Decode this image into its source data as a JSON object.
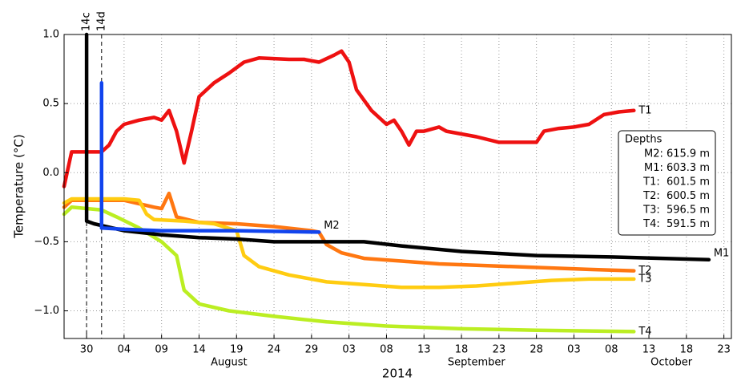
{
  "chart_data": {
    "type": "line",
    "xlabel": "2014",
    "ylabel": "Temperature (°C)",
    "xlim": [
      "2014-07-27",
      "2014-10-24"
    ],
    "ylim": [
      -1.2,
      1.0
    ],
    "grid": true,
    "xticks": [
      {
        "value": "2014-07-30",
        "label": "30"
      },
      {
        "value": "2014-08-04",
        "label": "04"
      },
      {
        "value": "2014-08-09",
        "label": "09"
      },
      {
        "value": "2014-08-14",
        "label": "14"
      },
      {
        "value": "2014-08-19",
        "label": "19"
      },
      {
        "value": "2014-08-24",
        "label": "24"
      },
      {
        "value": "2014-08-29",
        "label": "29"
      },
      {
        "value": "2014-09-03",
        "label": "03"
      },
      {
        "value": "2014-09-08",
        "label": "08"
      },
      {
        "value": "2014-09-13",
        "label": "13"
      },
      {
        "value": "2014-09-18",
        "label": "18"
      },
      {
        "value": "2014-09-23",
        "label": "23"
      },
      {
        "value": "2014-09-28",
        "label": "28"
      },
      {
        "value": "2014-10-03",
        "label": "03"
      },
      {
        "value": "2014-10-08",
        "label": "08"
      },
      {
        "value": "2014-10-13",
        "label": "13"
      },
      {
        "value": "2014-10-18",
        "label": "18"
      },
      {
        "value": "2014-10-23",
        "label": "23"
      }
    ],
    "month_labels": [
      {
        "value": "2014-08-18",
        "label": "August"
      },
      {
        "value": "2014-09-20",
        "label": "September"
      },
      {
        "value": "2014-10-16",
        "label": "October"
      }
    ],
    "yticks": [
      {
        "value": 1.0,
        "label": "1.0"
      },
      {
        "value": 0.5,
        "label": "0.5"
      },
      {
        "value": 0.0,
        "label": "0.0"
      },
      {
        "value": -0.5,
        "label": "−0.5"
      },
      {
        "value": -1.0,
        "label": "−1.0"
      }
    ],
    "vlines": [
      {
        "x": "2014-07-30",
        "label": "14c"
      },
      {
        "x": "2014-08-01",
        "label": "14d"
      }
    ],
    "series": [
      {
        "name": "T1",
        "color": "#ee1111",
        "x": [
          "2014-07-27",
          "2014-07-28",
          "2014-07-30",
          "2014-08-01",
          "2014-08-02",
          "2014-08-03",
          "2014-08-04",
          "2014-08-06",
          "2014-08-08",
          "2014-08-09",
          "2014-08-10",
          "2014-08-11",
          "2014-08-12",
          "2014-08-13",
          "2014-08-14",
          "2014-08-16",
          "2014-08-18",
          "2014-08-20",
          "2014-08-22",
          "2014-08-26",
          "2014-08-28",
          "2014-08-30",
          "2014-09-01",
          "2014-09-02",
          "2014-09-03",
          "2014-09-04",
          "2014-09-06",
          "2014-09-08",
          "2014-09-09",
          "2014-09-10",
          "2014-09-11",
          "2014-09-12",
          "2014-09-13",
          "2014-09-15",
          "2014-09-16",
          "2014-09-20",
          "2014-09-23",
          "2014-09-27",
          "2014-09-28",
          "2014-09-29",
          "2014-10-01",
          "2014-10-03",
          "2014-10-05",
          "2014-10-07",
          "2014-10-09",
          "2014-10-11"
        ],
        "values": [
          -0.1,
          0.15,
          0.15,
          0.15,
          0.2,
          0.3,
          0.35,
          0.38,
          0.4,
          0.38,
          0.45,
          0.3,
          0.07,
          0.3,
          0.55,
          0.65,
          0.72,
          0.8,
          0.83,
          0.82,
          0.82,
          0.8,
          0.85,
          0.88,
          0.8,
          0.6,
          0.45,
          0.35,
          0.38,
          0.3,
          0.2,
          0.3,
          0.3,
          0.33,
          0.3,
          0.26,
          0.22,
          0.22,
          0.22,
          0.3,
          0.32,
          0.33,
          0.35,
          0.42,
          0.44,
          0.45
        ]
      },
      {
        "name": "T2",
        "color": "#ff7711",
        "x": [
          "2014-07-27",
          "2014-07-28",
          "2014-08-01",
          "2014-08-04",
          "2014-08-08",
          "2014-08-09",
          "2014-08-10",
          "2014-08-11",
          "2014-08-14",
          "2014-08-19",
          "2014-08-24",
          "2014-08-29",
          "2014-08-30",
          "2014-08-31",
          "2014-09-02",
          "2014-09-05",
          "2014-09-10",
          "2014-09-15",
          "2014-09-20",
          "2014-09-25",
          "2014-09-30",
          "2014-10-05",
          "2014-10-11"
        ],
        "values": [
          -0.25,
          -0.2,
          -0.2,
          -0.2,
          -0.25,
          -0.26,
          -0.15,
          -0.32,
          -0.36,
          -0.37,
          -0.39,
          -0.42,
          -0.43,
          -0.52,
          -0.58,
          -0.62,
          -0.64,
          -0.66,
          -0.67,
          -0.68,
          -0.69,
          -0.7,
          -0.71
        ]
      },
      {
        "name": "T3",
        "color": "#ffcc11",
        "x": [
          "2014-07-27",
          "2014-07-28",
          "2014-08-04",
          "2014-08-06",
          "2014-08-07",
          "2014-08-08",
          "2014-08-12",
          "2014-08-16",
          "2014-08-19",
          "2014-08-20",
          "2014-08-22",
          "2014-08-26",
          "2014-08-31",
          "2014-09-05",
          "2014-09-10",
          "2014-09-15",
          "2014-09-20",
          "2014-09-25",
          "2014-09-30",
          "2014-10-05",
          "2014-10-11"
        ],
        "values": [
          -0.22,
          -0.19,
          -0.19,
          -0.2,
          -0.3,
          -0.34,
          -0.35,
          -0.37,
          -0.42,
          -0.6,
          -0.68,
          -0.74,
          -0.79,
          -0.81,
          -0.83,
          -0.83,
          -0.82,
          -0.8,
          -0.78,
          -0.77,
          -0.77
        ]
      },
      {
        "name": "T4",
        "color": "#bbee22",
        "x": [
          "2014-07-27",
          "2014-07-28",
          "2014-08-01",
          "2014-08-03",
          "2014-08-06",
          "2014-08-09",
          "2014-08-11",
          "2014-08-12",
          "2014-08-14",
          "2014-08-18",
          "2014-08-24",
          "2014-08-31",
          "2014-09-08",
          "2014-09-18",
          "2014-09-28",
          "2014-10-11"
        ],
        "values": [
          -0.3,
          -0.25,
          -0.27,
          -0.32,
          -0.4,
          -0.5,
          -0.6,
          -0.85,
          -0.95,
          -1.0,
          -1.04,
          -1.08,
          -1.11,
          -1.13,
          -1.14,
          -1.15
        ]
      },
      {
        "name": "M1",
        "color": "#000000",
        "x": [
          "2014-07-30",
          "2014-07-30",
          "2014-07-31",
          "2014-08-04",
          "2014-08-09",
          "2014-08-14",
          "2014-08-19",
          "2014-08-24",
          "2014-08-31",
          "2014-09-05",
          "2014-09-10",
          "2014-09-18",
          "2014-09-28",
          "2014-10-08",
          "2014-10-21"
        ],
        "values": [
          1.0,
          -0.35,
          -0.37,
          -0.42,
          -0.45,
          -0.47,
          -0.48,
          -0.5,
          -0.5,
          -0.5,
          -0.53,
          -0.57,
          -0.6,
          -0.61,
          -0.63
        ]
      },
      {
        "name": "M2",
        "color": "#1144ee",
        "x": [
          "2014-08-01",
          "2014-08-01",
          "2014-08-04",
          "2014-08-09",
          "2014-08-19",
          "2014-08-30"
        ],
        "values": [
          0.65,
          -0.4,
          -0.41,
          -0.42,
          -0.42,
          -0.43
        ]
      }
    ],
    "depths_box": {
      "title": "Depths",
      "entries": [
        "M2: 615.9 m",
        "M1: 603.3 m",
        "T1:  601.5 m",
        "T2:  600.5 m",
        "T3:  596.5 m",
        "T4:  591.5 m"
      ]
    }
  }
}
